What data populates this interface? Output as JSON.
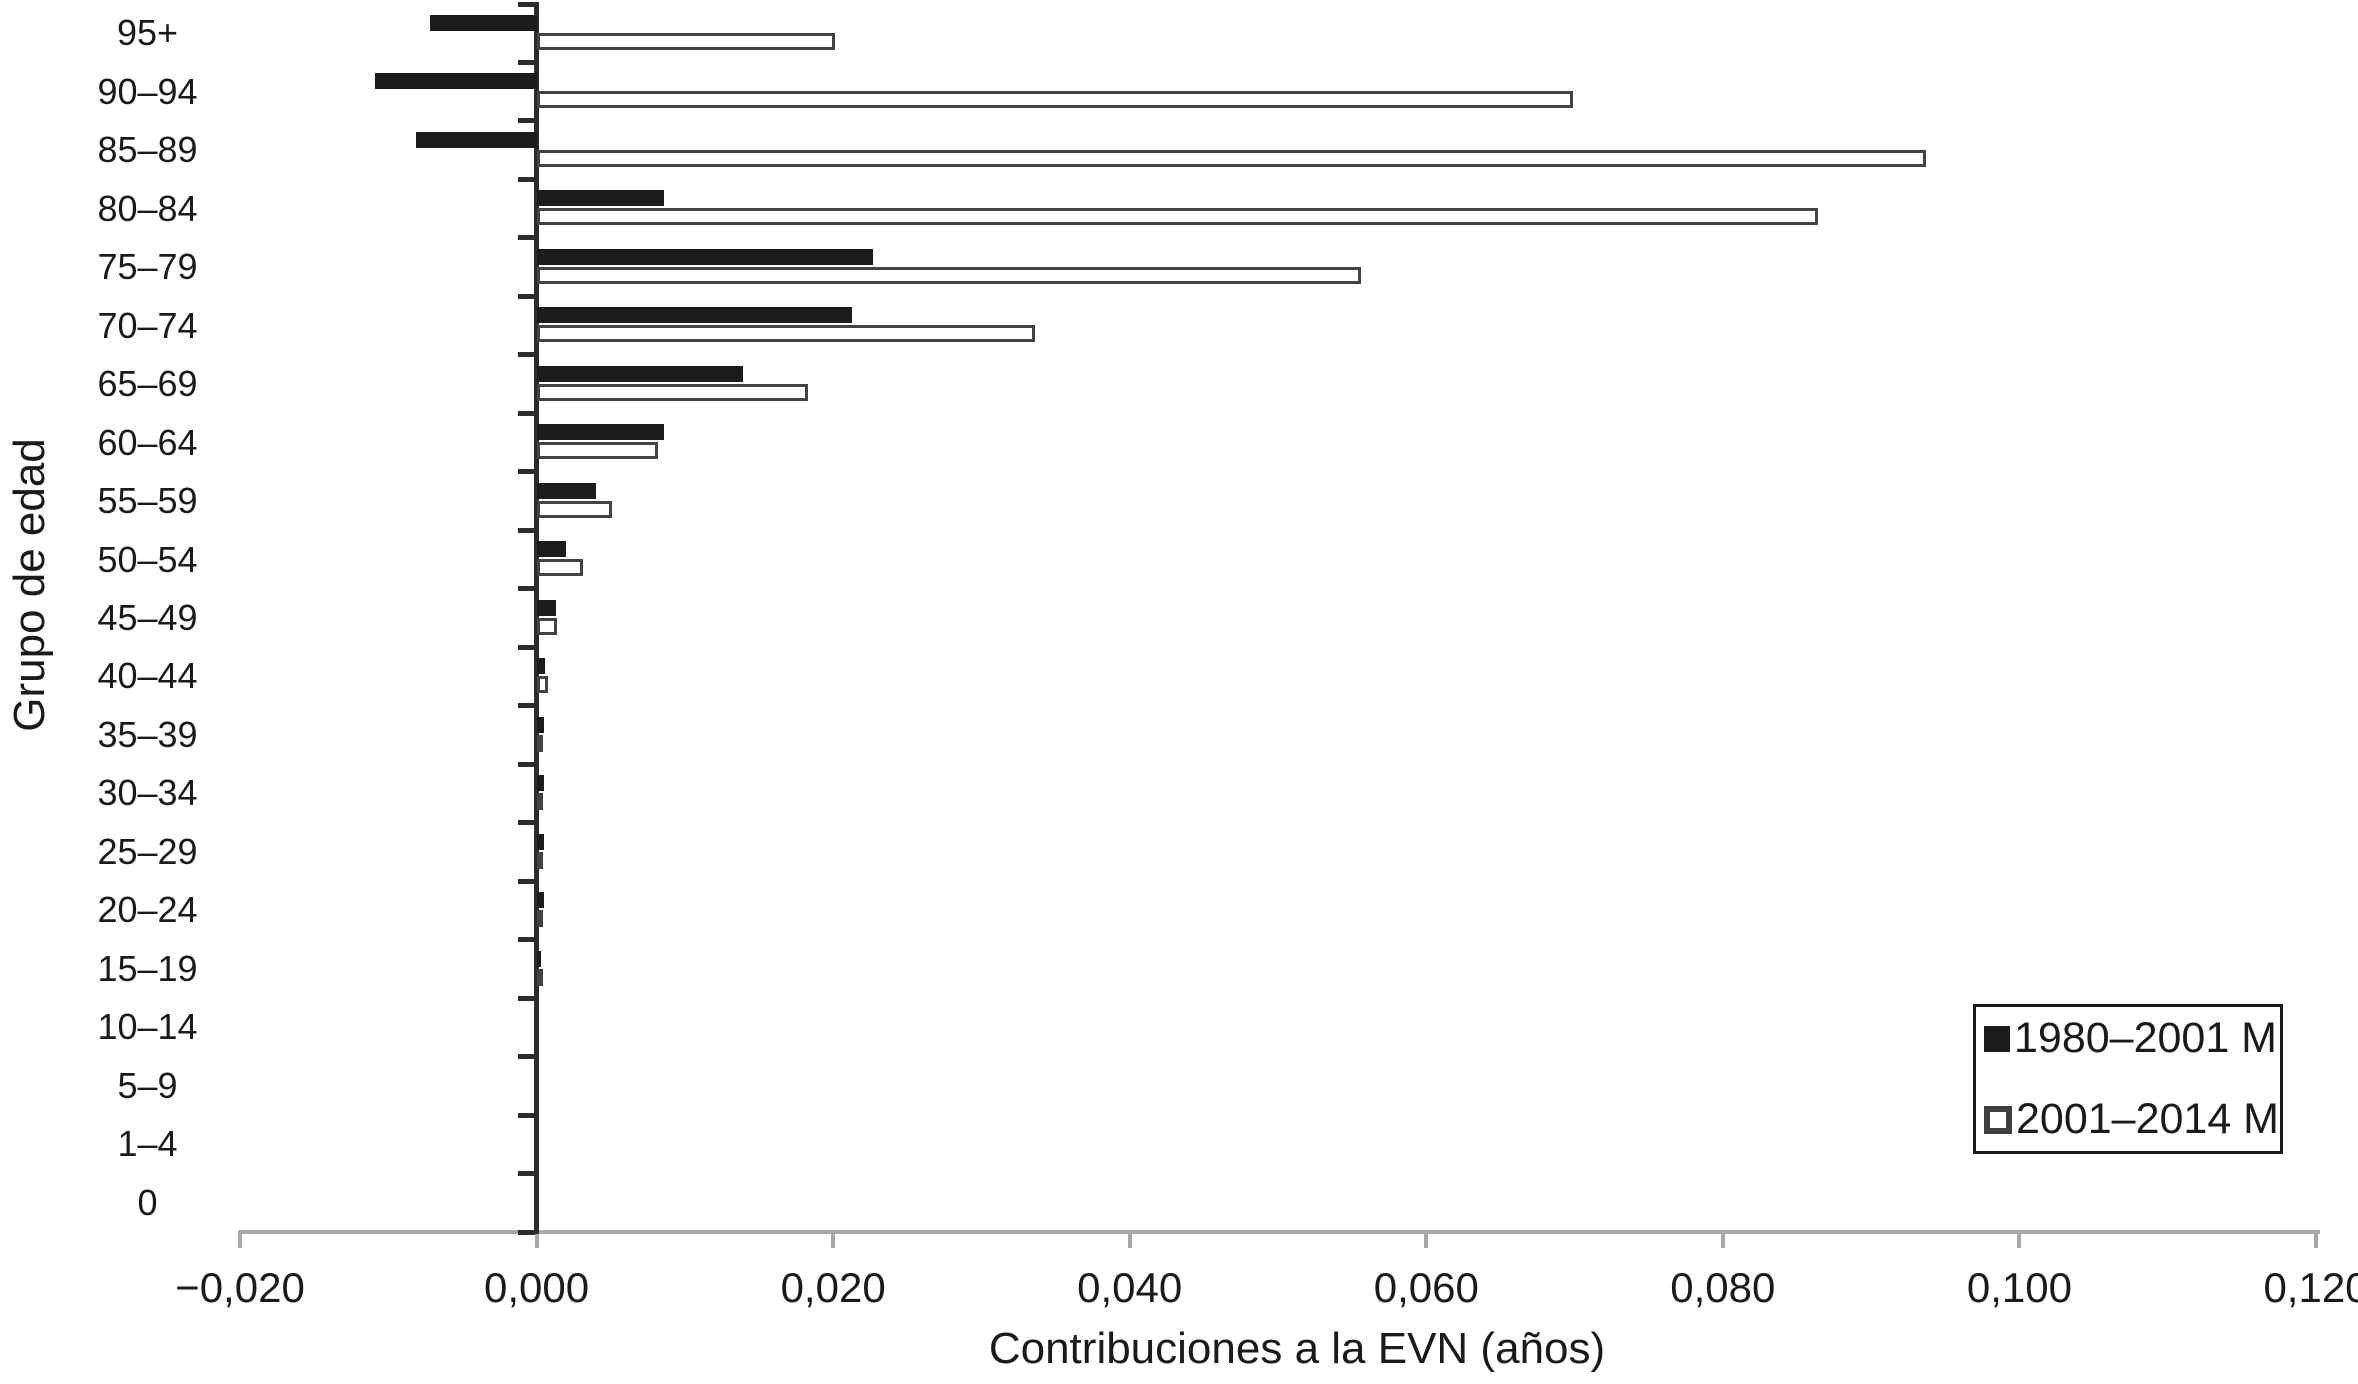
{
  "chart_data": {
    "type": "bar",
    "orientation": "horizontal",
    "title": "",
    "xlabel": "Contribuciones a la EVN (años)",
    "ylabel": "Grupo de edad",
    "categories": [
      "95+",
      "90–94",
      "85–89",
      "80–84",
      "75–79",
      "70–74",
      "65–69",
      "60–64",
      "55–59",
      "50–54",
      "45–49",
      "40–44",
      "35–39",
      "30–34",
      "25–29",
      "20–24",
      "15–19",
      "10–14",
      "5–9",
      "1–4",
      "0"
    ],
    "series": [
      {
        "name": "1980–2001 M",
        "style": "solid-black",
        "fill": "#1c1c1c",
        "values": [
          -0.0072,
          -0.0109,
          -0.0081,
          0.0086,
          0.0227,
          0.0213,
          0.0139,
          0.0086,
          0.004,
          0.002,
          0.0013,
          0.0006,
          0.0005,
          0.0005,
          0.0005,
          0.0005,
          0.0003,
          0,
          0,
          0,
          0
        ]
      },
      {
        "name": "2001–2014 M",
        "style": "white-outlined",
        "fill": "#ffffff",
        "border": "#434343",
        "values": [
          0.0201,
          0.0699,
          0.0937,
          0.0864,
          0.0556,
          0.0336,
          0.0183,
          0.0082,
          0.0051,
          0.0031,
          0.0014,
          0.0008,
          0.0004,
          0.0004,
          0.0004,
          0.0004,
          0.0002,
          0,
          0,
          0,
          0
        ]
      }
    ],
    "xlim": [
      -0.02,
      0.12
    ],
    "x_ticks": [
      -0.02,
      0,
      0.02,
      0.04,
      0.06,
      0.08,
      0.1,
      0.12
    ],
    "x_tick_labels": [
      "−0,020",
      "0,000",
      "0,020",
      "0,040",
      "0,060",
      "0,080",
      "0,100",
      "0,120"
    ],
    "grid": false,
    "legend_position": "bottom-right",
    "colors": {
      "bar_black": "#1c1c1c",
      "bar_white_border": "#434343",
      "axis_x_gray": "#a8a8a8",
      "axis_y_dark": "#2b2b2b",
      "text": "#1a1a1a"
    }
  }
}
